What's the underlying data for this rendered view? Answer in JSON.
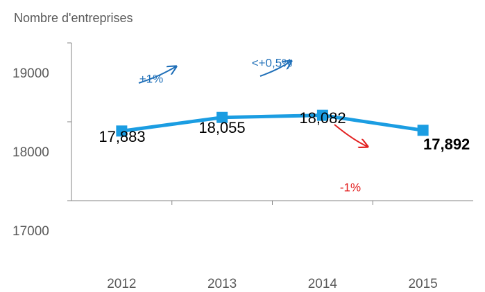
{
  "chart_data": {
    "type": "line",
    "title": "Nombre d'entreprises",
    "categories": [
      "2012",
      "2013",
      "2014",
      "2015"
    ],
    "series": [
      {
        "name": "Nombre d'entreprises",
        "color": "#1b9de2",
        "values": [
          17883,
          18055,
          18082,
          17892
        ],
        "value_labels": [
          "17,883",
          "18,055",
          "18,082",
          "17,892"
        ]
      }
    ],
    "ylim": [
      17000,
      19000
    ],
    "yticks": [
      17000,
      18000,
      19000
    ],
    "grid": false,
    "annotations": [
      {
        "text": "+1%",
        "color": "#1f6fb8"
      },
      {
        "text": "<+0,5%",
        "color": "#1f6fb8"
      },
      {
        "text": "-1%",
        "color": "#e32020"
      }
    ]
  }
}
